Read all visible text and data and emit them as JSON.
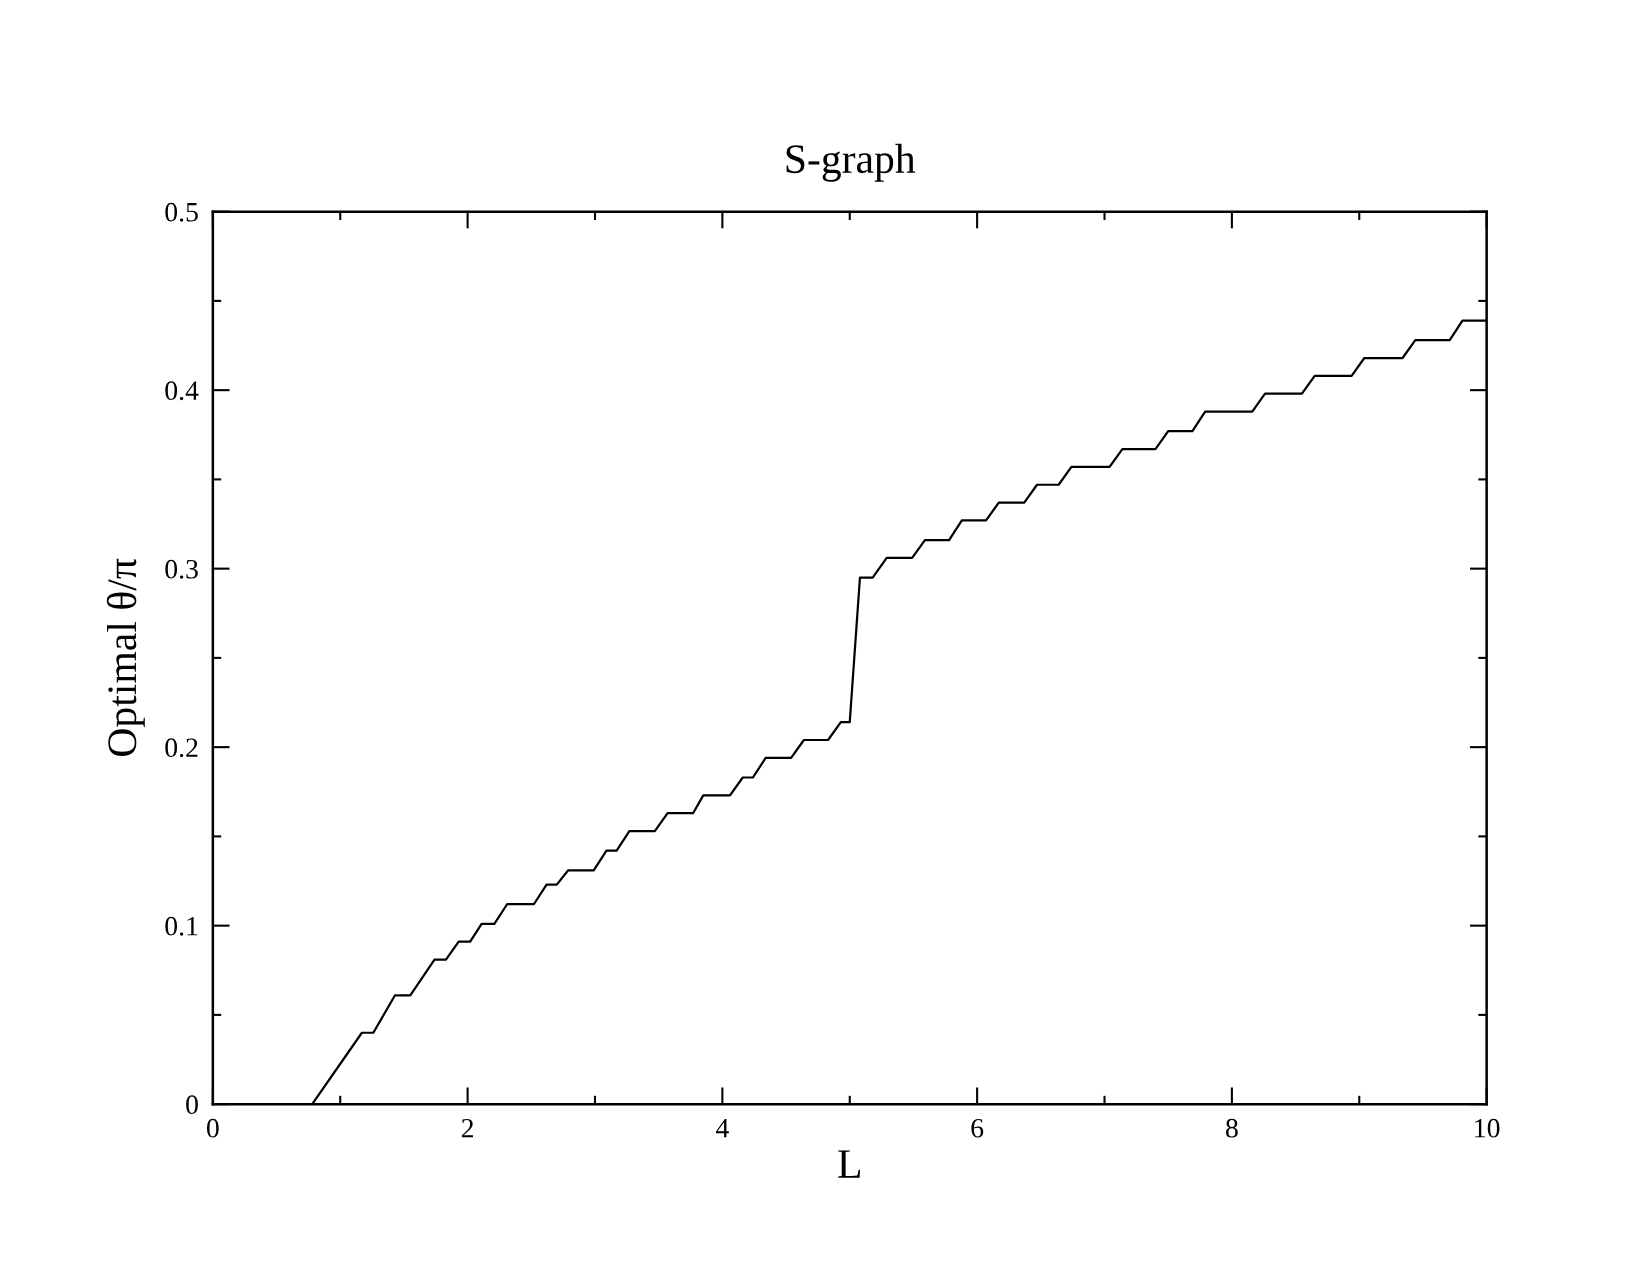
{
  "chart_data": {
    "type": "line",
    "title": "S-graph",
    "xlabel": "L",
    "ylabel": "Optimal θ/π",
    "series": [
      {
        "color": "#000000",
        "x": [
          0.78,
          1.17,
          1.26,
          1.43,
          1.55,
          1.74,
          1.83,
          1.93,
          2.02,
          2.11,
          2.21,
          2.31,
          2.52,
          2.62,
          2.7,
          2.79,
          2.99,
          3.09,
          3.17,
          3.27,
          3.47,
          3.57,
          3.77,
          3.85,
          4.06,
          4.16,
          4.24,
          4.34,
          4.54,
          4.64,
          4.83,
          4.93,
          5.0,
          5.08,
          5.18,
          5.29,
          5.49,
          5.59,
          5.78,
          5.88,
          6.07,
          6.17,
          6.37,
          6.47,
          6.64,
          6.74,
          7.04,
          7.14,
          7.4,
          7.5,
          7.69,
          7.79,
          8.16,
          8.26,
          8.55,
          8.65,
          8.94,
          9.04,
          9.34,
          9.44,
          9.71,
          9.81,
          10.0
        ],
        "values": [
          0,
          0.04,
          0.04,
          0.061,
          0.061,
          0.081,
          0.081,
          0.091,
          0.091,
          0.101,
          0.101,
          0.112,
          0.112,
          0.123,
          0.123,
          0.131,
          0.131,
          0.142,
          0.142,
          0.153,
          0.153,
          0.163,
          0.163,
          0.173,
          0.173,
          0.183,
          0.183,
          0.194,
          0.194,
          0.204,
          0.204,
          0.214,
          0.214,
          0.295,
          0.295,
          0.306,
          0.306,
          0.316,
          0.316,
          0.327,
          0.327,
          0.337,
          0.337,
          0.347,
          0.347,
          0.357,
          0.357,
          0.367,
          0.367,
          0.377,
          0.377,
          0.388,
          0.388,
          0.398,
          0.398,
          0.408,
          0.408,
          0.418,
          0.418,
          0.428,
          0.428,
          0.439,
          0.439
        ]
      }
    ],
    "xlim": [
      0,
      10
    ],
    "ylim": [
      0,
      0.5
    ],
    "xticks": [
      0,
      {
        "value": 1,
        "label": null
      },
      2,
      {
        "value": 3,
        "label": null
      },
      4,
      {
        "value": 5,
        "label": null
      },
      6,
      {
        "value": 7,
        "label": null
      },
      8,
      {
        "value": 9,
        "label": null
      },
      10
    ],
    "yticks": [
      0,
      {
        "value": 0.05,
        "label": null
      },
      0.1,
      {
        "value": 0.15,
        "label": null
      },
      0.2,
      {
        "value": 0.25,
        "label": null
      },
      0.3,
      {
        "value": 0.35,
        "label": null
      },
      0.4,
      {
        "value": 0.45,
        "label": null
      },
      0.5
    ],
    "grid": false,
    "marker": "none",
    "line_style": "solid"
  }
}
